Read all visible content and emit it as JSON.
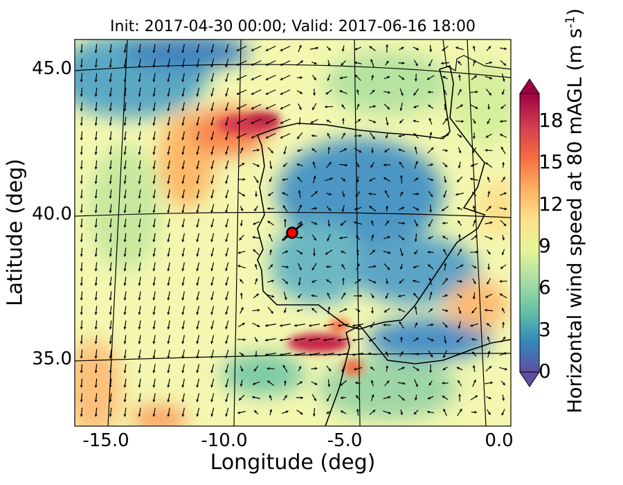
{
  "title": "Init: 2017-04-30 00:00; Valid: 2017-06-16 18:00",
  "x_axis": {
    "label": "Longitude (deg)",
    "ticks": [
      {
        "value": -15,
        "label": "-15.0"
      },
      {
        "value": -10,
        "label": "-10.0"
      },
      {
        "value": -5,
        "label": "-5.0"
      },
      {
        "value": 0,
        "label": "0.0"
      }
    ]
  },
  "y_axis": {
    "label": "Latitude (deg)",
    "ticks": [
      {
        "value": 45,
        "label": "45.0"
      },
      {
        "value": 40,
        "label": "40.0"
      },
      {
        "value": 35,
        "label": "35.0"
      }
    ]
  },
  "colorbar": {
    "label": "Horizontal wind speed at 80 mAGL (m s",
    "label_exponent": "-1",
    "label_close": ")",
    "min": 0,
    "max": 20,
    "ticks": [
      "0",
      "3",
      "6",
      "9",
      "12",
      "15",
      "18"
    ],
    "extend": "both",
    "colormap": "Spectral_r",
    "stops": [
      "#5e4fa2",
      "#3288bd",
      "#66c2a5",
      "#abdda4",
      "#e6f598",
      "#fee08b",
      "#fdae61",
      "#f46d43",
      "#d53e4f",
      "#9e0142"
    ]
  },
  "map": {
    "lon_range": [
      -16,
      0
    ],
    "lat_range": [
      33,
      46
    ],
    "coastline_color": "#000000",
    "graticule_color": "#000000",
    "wind_field_note": "southward flow over Atlantic, jet off NW Iberia and in Strait of Gibraltar",
    "marker": {
      "lon": -7.7,
      "lat": 39.3,
      "color": "#ff0000"
    }
  }
}
